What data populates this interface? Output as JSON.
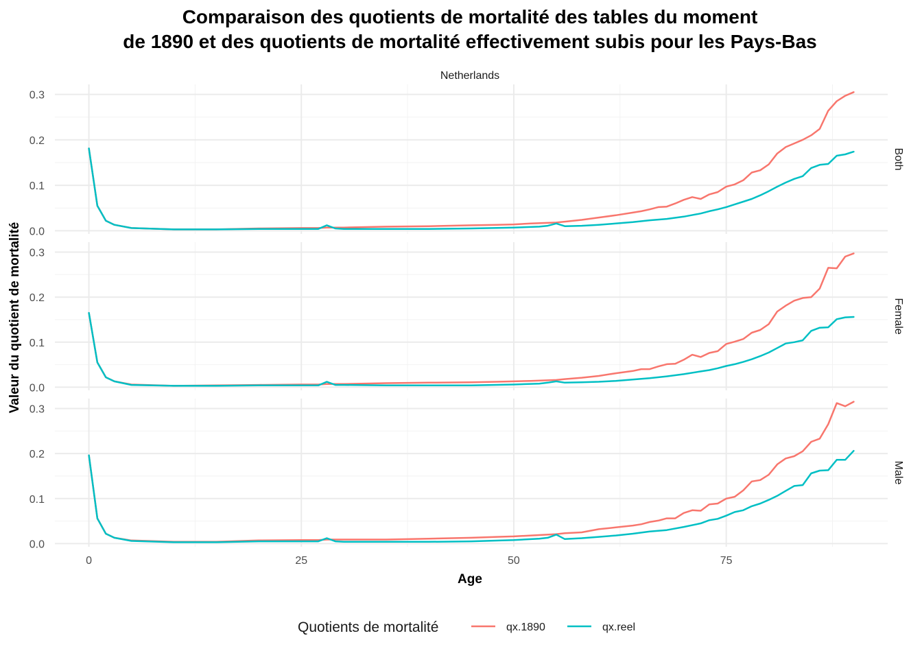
{
  "chart_data": {
    "type": "line",
    "title_line1": "Comparaison des quotients de mortalité des tables du moment",
    "title_line2": "de 1890 et des quotients de mortalité effectivement subis pour les Pays-Bas",
    "strip_top": "Netherlands",
    "xlabel": "Age",
    "ylabel": "Valeur du quotient de mortalité",
    "xlim": [
      -4,
      94
    ],
    "ylim": [
      -0.007,
      0.322
    ],
    "x_ticks": [
      0,
      25,
      50,
      75
    ],
    "y_ticks": [
      0.0,
      0.1,
      0.2,
      0.3
    ],
    "x_tick_labels": [
      "0",
      "25",
      "50",
      "75"
    ],
    "y_tick_labels": [
      "0.0",
      "0.1",
      "0.2",
      "0.3"
    ],
    "grid": true,
    "legend": {
      "title": "Quotients de mortalité",
      "position": "bottom",
      "entries": [
        "qx.1890",
        "qx.reel"
      ]
    },
    "series_colors": {
      "qx.1890": "#F8766D",
      "qx.reel": "#00BFC4"
    },
    "panels": [
      {
        "label": "Both",
        "series": [
          {
            "name": "qx.1890",
            "x": [
              0,
              1,
              2,
              3,
              5,
              10,
              15,
              20,
              25,
              27,
              28,
              29,
              30,
              35,
              40,
              45,
              48,
              50,
              52,
              55,
              56,
              58,
              60,
              62,
              64,
              65,
              66,
              67,
              68,
              69,
              70,
              71,
              72,
              73,
              74,
              75,
              76,
              77,
              78,
              79,
              80,
              81,
              82,
              83,
              84,
              85,
              86,
              87,
              88,
              89,
              90
            ],
            "values": [
              0.181,
              0.055,
              0.022,
              0.013,
              0.006,
              0.003,
              0.003,
              0.005,
              0.006,
              0.006,
              0.007,
              0.007,
              0.007,
              0.009,
              0.01,
              0.012,
              0.013,
              0.014,
              0.016,
              0.018,
              0.02,
              0.024,
              0.029,
              0.034,
              0.04,
              0.043,
              0.047,
              0.052,
              0.053,
              0.06,
              0.068,
              0.074,
              0.07,
              0.08,
              0.085,
              0.097,
              0.102,
              0.111,
              0.128,
              0.133,
              0.146,
              0.17,
              0.184,
              0.192,
              0.2,
              0.21,
              0.224,
              0.264,
              0.285,
              0.297,
              0.305
            ]
          },
          {
            "name": "qx.reel",
            "x": [
              0,
              1,
              2,
              3,
              5,
              10,
              15,
              20,
              25,
              27,
              28,
              29,
              30,
              35,
              40,
              45,
              50,
              53,
              54,
              55,
              56,
              58,
              60,
              62,
              64,
              66,
              68,
              70,
              72,
              73,
              74,
              75,
              76,
              77,
              78,
              79,
              80,
              81,
              82,
              83,
              84,
              85,
              86,
              87,
              88,
              89,
              90
            ],
            "values": [
              0.181,
              0.055,
              0.022,
              0.013,
              0.006,
              0.003,
              0.003,
              0.004,
              0.004,
              0.004,
              0.012,
              0.005,
              0.004,
              0.004,
              0.004,
              0.005,
              0.007,
              0.009,
              0.011,
              0.016,
              0.01,
              0.011,
              0.013,
              0.016,
              0.019,
              0.023,
              0.026,
              0.031,
              0.038,
              0.043,
              0.047,
              0.052,
              0.058,
              0.064,
              0.07,
              0.078,
              0.087,
              0.097,
              0.106,
              0.114,
              0.12,
              0.138,
              0.145,
              0.147,
              0.165,
              0.168,
              0.174
            ]
          }
        ]
      },
      {
        "label": "Female",
        "series": [
          {
            "name": "qx.1890",
            "x": [
              0,
              1,
              2,
              3,
              5,
              10,
              15,
              20,
              25,
              27,
              28,
              29,
              30,
              35,
              40,
              45,
              48,
              50,
              52,
              55,
              56,
              58,
              60,
              62,
              64,
              65,
              66,
              67,
              68,
              69,
              70,
              71,
              72,
              73,
              74,
              75,
              76,
              77,
              78,
              79,
              80,
              81,
              82,
              83,
              84,
              85,
              86,
              87,
              88,
              89,
              90
            ],
            "values": [
              0.165,
              0.055,
              0.022,
              0.013,
              0.006,
              0.003,
              0.004,
              0.005,
              0.006,
              0.006,
              0.007,
              0.007,
              0.007,
              0.009,
              0.01,
              0.011,
              0.012,
              0.013,
              0.014,
              0.016,
              0.018,
              0.021,
              0.025,
              0.031,
              0.036,
              0.04,
              0.04,
              0.046,
              0.051,
              0.052,
              0.061,
              0.072,
              0.067,
              0.076,
              0.08,
              0.096,
              0.101,
              0.107,
              0.121,
              0.127,
              0.14,
              0.168,
              0.181,
              0.192,
              0.198,
              0.2,
              0.219,
              0.265,
              0.264,
              0.29,
              0.297
            ]
          },
          {
            "name": "qx.reel",
            "x": [
              0,
              1,
              2,
              3,
              5,
              10,
              15,
              20,
              25,
              27,
              28,
              29,
              30,
              35,
              40,
              45,
              50,
              53,
              54,
              55,
              56,
              58,
              60,
              62,
              64,
              66,
              68,
              70,
              72,
              73,
              74,
              75,
              76,
              77,
              78,
              79,
              80,
              81,
              82,
              83,
              84,
              85,
              86,
              87,
              88,
              89,
              90
            ],
            "values": [
              0.165,
              0.055,
              0.022,
              0.013,
              0.005,
              0.003,
              0.003,
              0.004,
              0.004,
              0.004,
              0.012,
              0.005,
              0.005,
              0.004,
              0.004,
              0.004,
              0.006,
              0.008,
              0.01,
              0.013,
              0.01,
              0.011,
              0.012,
              0.014,
              0.017,
              0.02,
              0.024,
              0.029,
              0.035,
              0.038,
              0.042,
              0.047,
              0.051,
              0.056,
              0.062,
              0.069,
              0.077,
              0.087,
              0.097,
              0.1,
              0.104,
              0.125,
              0.132,
              0.133,
              0.151,
              0.155,
              0.156
            ]
          }
        ]
      },
      {
        "label": "Male",
        "series": [
          {
            "name": "qx.1890",
            "x": [
              0,
              1,
              2,
              3,
              5,
              10,
              15,
              20,
              25,
              27,
              28,
              29,
              30,
              35,
              40,
              45,
              48,
              50,
              52,
              55,
              56,
              58,
              60,
              62,
              64,
              65,
              66,
              67,
              68,
              69,
              70,
              71,
              72,
              73,
              74,
              75,
              76,
              77,
              78,
              79,
              80,
              81,
              82,
              83,
              84,
              85,
              86,
              87,
              88,
              89,
              90
            ],
            "values": [
              0.196,
              0.056,
              0.022,
              0.013,
              0.007,
              0.004,
              0.004,
              0.007,
              0.008,
              0.008,
              0.009,
              0.009,
              0.009,
              0.009,
              0.011,
              0.013,
              0.015,
              0.016,
              0.018,
              0.021,
              0.023,
              0.025,
              0.032,
              0.036,
              0.04,
              0.043,
              0.048,
              0.051,
              0.056,
              0.056,
              0.068,
              0.074,
              0.073,
              0.087,
              0.089,
              0.1,
              0.104,
              0.118,
              0.138,
              0.141,
              0.153,
              0.176,
              0.189,
              0.194,
              0.205,
              0.226,
              0.233,
              0.265,
              0.312,
              0.305,
              0.315
            ]
          },
          {
            "name": "qx.reel",
            "x": [
              0,
              1,
              2,
              3,
              5,
              10,
              15,
              20,
              25,
              27,
              28,
              29,
              30,
              35,
              40,
              45,
              50,
              53,
              54,
              55,
              56,
              58,
              60,
              62,
              64,
              66,
              68,
              70,
              72,
              73,
              74,
              75,
              76,
              77,
              78,
              79,
              80,
              81,
              82,
              83,
              84,
              85,
              86,
              87,
              88,
              89,
              90
            ],
            "values": [
              0.196,
              0.056,
              0.022,
              0.013,
              0.006,
              0.003,
              0.003,
              0.005,
              0.005,
              0.005,
              0.012,
              0.005,
              0.004,
              0.004,
              0.004,
              0.005,
              0.008,
              0.011,
              0.013,
              0.02,
              0.01,
              0.012,
              0.015,
              0.018,
              0.022,
              0.027,
              0.03,
              0.037,
              0.045,
              0.052,
              0.055,
              0.062,
              0.07,
              0.074,
              0.083,
              0.089,
              0.097,
              0.106,
              0.117,
              0.128,
              0.13,
              0.156,
              0.162,
              0.163,
              0.186,
              0.186,
              0.206
            ]
          }
        ]
      }
    ]
  }
}
